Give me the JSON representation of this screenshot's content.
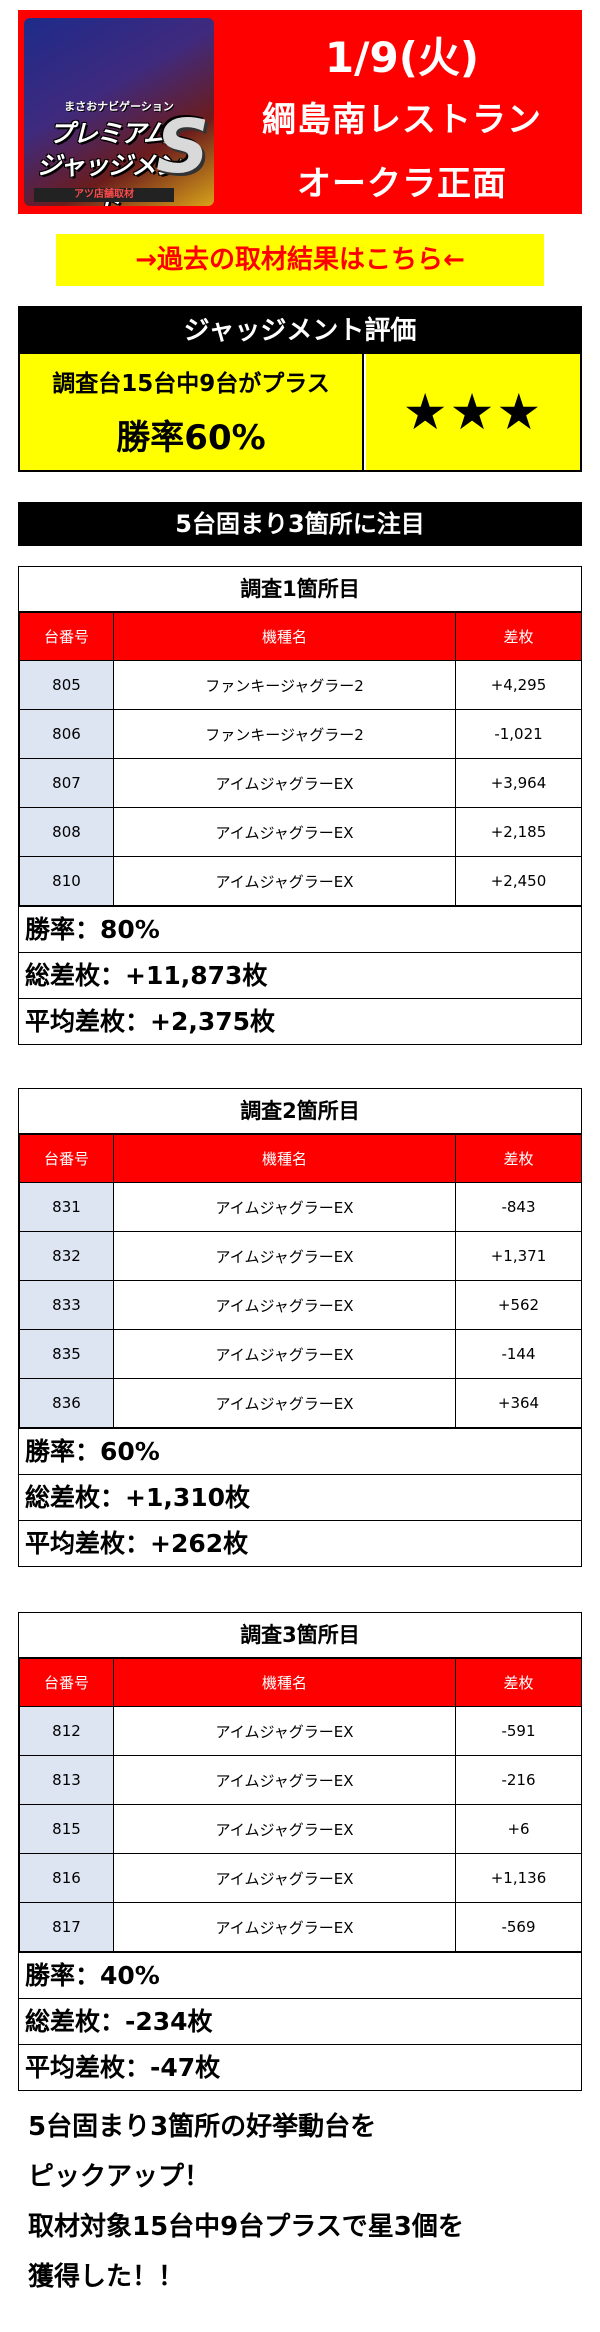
{
  "header": {
    "logo": {
      "subtitle": "まさおナビゲーション",
      "line1": "プレミアム",
      "line2": "ジャッジメント",
      "badge": "S",
      "footer": "アツ店舗取材"
    },
    "date": "1/9(火)",
    "store": "綱島南レストラン",
    "store_sub": "オークラ正面",
    "bg_color": "#ff0000"
  },
  "past_link": "→過去の取材結果はこちら←",
  "judgement": {
    "title": "ジャッジメント評価",
    "summary": "調査台15台中9台がプラス",
    "win_rate": "勝率60%",
    "stars": "★★★"
  },
  "focus_banner": "5台固まり3箇所に注目",
  "columns": [
    "台番号",
    "機種名",
    "差枚"
  ],
  "surveys": [
    {
      "title": "調査1箇所目",
      "rows": [
        {
          "no": "805",
          "name": "ファンキージャグラー2",
          "diff": "+4,295"
        },
        {
          "no": "806",
          "name": "ファンキージャグラー2",
          "diff": "-1,021"
        },
        {
          "no": "807",
          "name": "アイムジャグラーEX",
          "diff": "+3,964"
        },
        {
          "no": "808",
          "name": "アイムジャグラーEX",
          "diff": "+2,185"
        },
        {
          "no": "810",
          "name": "アイムジャグラーEX",
          "diff": "+2,450"
        }
      ],
      "win_rate": "勝率：80%",
      "total": "総差枚：+11,873枚",
      "average": "平均差枚：+2,375枚"
    },
    {
      "title": "調査2箇所目",
      "rows": [
        {
          "no": "831",
          "name": "アイムジャグラーEX",
          "diff": "-843"
        },
        {
          "no": "832",
          "name": "アイムジャグラーEX",
          "diff": "+1,371"
        },
        {
          "no": "833",
          "name": "アイムジャグラーEX",
          "diff": "+562"
        },
        {
          "no": "835",
          "name": "アイムジャグラーEX",
          "diff": "-144"
        },
        {
          "no": "836",
          "name": "アイムジャグラーEX",
          "diff": "+364"
        }
      ],
      "win_rate": "勝率：60%",
      "total": "総差枚：+1,310枚",
      "average": "平均差枚：+262枚"
    },
    {
      "title": "調査3箇所目",
      "rows": [
        {
          "no": "812",
          "name": "アイムジャグラーEX",
          "diff": "-591"
        },
        {
          "no": "813",
          "name": "アイムジャグラーEX",
          "diff": "-216"
        },
        {
          "no": "815",
          "name": "アイムジャグラーEX",
          "diff": "+6"
        },
        {
          "no": "816",
          "name": "アイムジャグラーEX",
          "diff": "+1,136"
        },
        {
          "no": "817",
          "name": "アイムジャグラーEX",
          "diff": "-569"
        }
      ],
      "win_rate": "勝率：40%",
      "total": "総差枚：-234枚",
      "average": "平均差枚：-47枚"
    }
  ],
  "closing": [
    "5台固まり3箇所の好挙動台を",
    "ピックアップ！",
    "取材対象15台中9台プラスで星3個を",
    "獲得した！！"
  ]
}
